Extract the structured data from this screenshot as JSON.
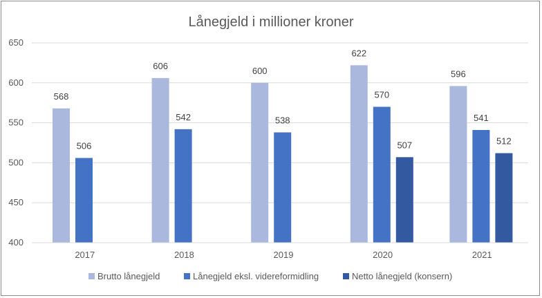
{
  "chart_data": {
    "type": "bar",
    "title": "Lånegjeld i millioner kroner",
    "xlabel": "",
    "ylabel": "",
    "ylim": [
      400,
      650
    ],
    "yticks": [
      400,
      450,
      500,
      550,
      600,
      650
    ],
    "grid": true,
    "legend_position": "bottom",
    "categories": [
      "2017",
      "2018",
      "2019",
      "2020",
      "2021"
    ],
    "series": [
      {
        "name": "Brutto lånegjeld",
        "color": "#a9b8dc",
        "values": [
          568,
          606,
          600,
          622,
          596
        ]
      },
      {
        "name": "Lånegjeld eksl. videreformidling",
        "color": "#4472c4",
        "values": [
          506,
          542,
          538,
          570,
          541
        ]
      },
      {
        "name": "Netto lånegjeld (konsern)",
        "color": "#335aa1",
        "values": [
          null,
          null,
          null,
          507,
          512
        ]
      }
    ]
  }
}
